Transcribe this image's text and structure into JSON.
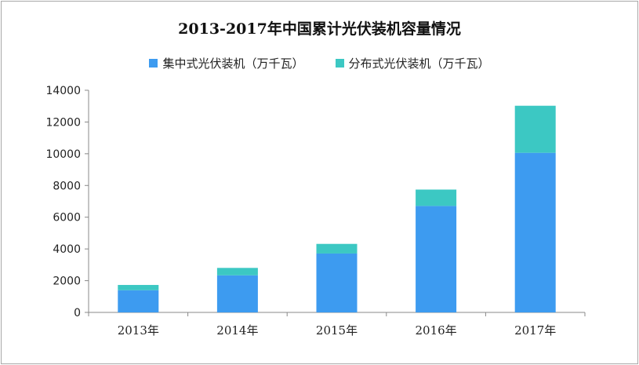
{
  "chart_data": {
    "type": "bar",
    "stacked": true,
    "title": "2013-2017年中国累计光伏装机容量情况",
    "categories": [
      "2013年",
      "2014年",
      "2015年",
      "2016年",
      "2017年"
    ],
    "series": [
      {
        "name": "集中式光伏装机（万千瓦）",
        "color": "#3d9bf0",
        "values": [
          1400,
          2338,
          3712,
          6710,
          10059
        ]
      },
      {
        "name": "分布式光伏装机（万千瓦）",
        "color": "#3cc8c3",
        "values": [
          330,
          467,
          606,
          1032,
          2966
        ]
      }
    ],
    "ylim": [
      0,
      14000
    ],
    "yticks": [
      "0",
      "2000",
      "4000",
      "6000",
      "8000",
      "10000",
      "12000",
      "14000"
    ],
    "grid": false,
    "legend": "top"
  }
}
